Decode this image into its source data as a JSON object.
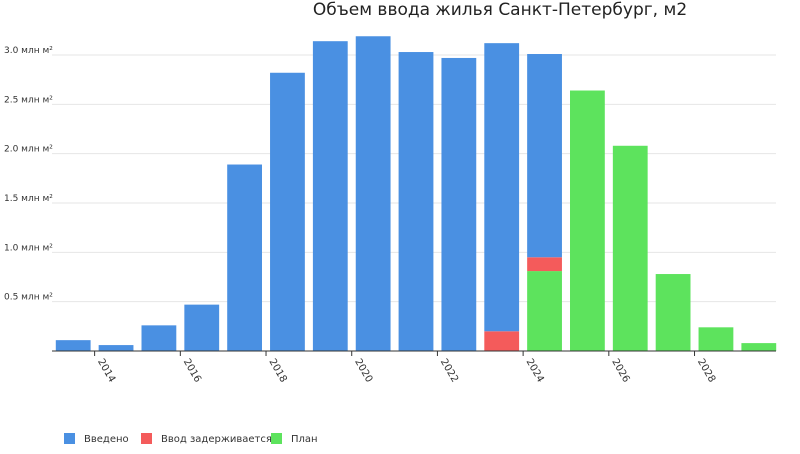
{
  "chart_data": {
    "type": "bar",
    "stacked": true,
    "title": "Объем ввода жилья Санкт-Петербург, м2",
    "xlabel": "",
    "ylabel": "",
    "x": [
      2013,
      2014,
      2015,
      2016,
      2017,
      2018,
      2019,
      2020,
      2021,
      2022,
      2023,
      2024,
      2025,
      2026,
      2027,
      2028,
      2029
    ],
    "x_tick_labels": [
      "2014",
      "2016",
      "2018",
      "2020",
      "2022",
      "2024",
      "2026",
      "2028"
    ],
    "x_tick_values": [
      2014,
      2016,
      2018,
      2020,
      2022,
      2024,
      2026,
      2028
    ],
    "ylim": [
      0,
      3.2
    ],
    "y_tick_values": [
      0.5,
      1.0,
      1.5,
      2.0,
      2.5,
      3.0
    ],
    "y_tick_labels": [
      "0.5 млн м²",
      "1.0 млн м²",
      "1.5 млн м²",
      "2.0 млн м²",
      "2.5 млн м²",
      "3.0 млн м²"
    ],
    "grid": true,
    "legend_position": "bottom-left",
    "series": [
      {
        "name": "План",
        "color": "#5de35d",
        "values": [
          0,
          0,
          0,
          0,
          0,
          0,
          0,
          0,
          0,
          0,
          0,
          0.81,
          2.64,
          2.08,
          0.78,
          0.24,
          0.08
        ]
      },
      {
        "name": "Ввод задерживается",
        "color": "#f45b5b",
        "values": [
          0,
          0,
          0,
          0,
          0,
          0,
          0,
          0,
          0,
          0,
          0.2,
          0.14,
          0,
          0,
          0,
          0,
          0
        ]
      },
      {
        "name": "Введено",
        "color": "#4a90e2",
        "values": [
          0.11,
          0.06,
          0.26,
          0.47,
          1.89,
          2.82,
          3.14,
          3.19,
          3.03,
          2.97,
          2.92,
          2.06,
          0,
          0,
          0,
          0,
          0
        ]
      }
    ],
    "legend_order": [
      "Введено",
      "Ввод задерживается",
      "План"
    ]
  }
}
